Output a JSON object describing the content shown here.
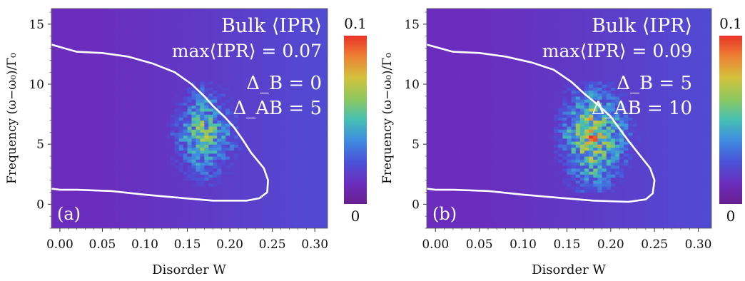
{
  "chart_data": [
    {
      "type": "heatmap",
      "panel_label": "(a)",
      "xlabel": "Disorder W",
      "ylabel": "Frequency (ω−ω₀)/Γ₀",
      "xlim": [
        -0.01,
        0.315
      ],
      "ylim": [
        -2,
        16.3
      ],
      "xticks": [
        "0.00",
        "0.05",
        "0.10",
        "0.15",
        "0.20",
        "0.25",
        "0.30"
      ],
      "yticks": [
        "0",
        "5",
        "10",
        "15"
      ],
      "annotations": [
        "Bulk ⟨IPR⟩",
        "max⟨IPR⟩ = 0.07",
        "Δ_B = 0",
        "Δ_AB = 5"
      ],
      "colorbar": {
        "min_label": "0",
        "max_label": "0.1",
        "range": [
          0,
          0.1
        ]
      },
      "max_ipr": 0.07,
      "background_value": 0.012,
      "localized_region": {
        "w_start": 0.11,
        "w_peak": 0.165,
        "w_end": 0.235,
        "freq_low": 1.5,
        "freq_high": 10.0
      },
      "boundary": [
        [
          -0.01,
          13.3
        ],
        [
          0.0,
          13.1
        ],
        [
          0.02,
          12.7
        ],
        [
          0.05,
          12.6
        ],
        [
          0.08,
          12.3
        ],
        [
          0.11,
          11.7
        ],
        [
          0.135,
          11.0
        ],
        [
          0.155,
          10.0
        ],
        [
          0.17,
          9.0
        ],
        [
          0.18,
          8.2
        ],
        [
          0.195,
          7.2
        ],
        [
          0.205,
          6.4
        ],
        [
          0.215,
          5.4
        ],
        [
          0.225,
          4.3
        ],
        [
          0.24,
          3.0
        ],
        [
          0.245,
          2.0
        ],
        [
          0.244,
          1.0
        ],
        [
          0.235,
          0.5
        ],
        [
          0.22,
          0.3
        ],
        [
          0.18,
          0.3
        ],
        [
          0.13,
          0.6
        ],
        [
          0.1,
          0.8
        ],
        [
          0.06,
          1.1
        ],
        [
          0.02,
          1.2
        ],
        [
          0.0,
          1.2
        ],
        [
          -0.01,
          1.3
        ]
      ]
    },
    {
      "type": "heatmap",
      "panel_label": "(b)",
      "xlabel": "Disorder W",
      "ylabel": "Frequency (ω−ω₀)/Γ₀",
      "xlim": [
        -0.01,
        0.315
      ],
      "ylim": [
        -2,
        16.3
      ],
      "xticks": [
        "0.00",
        "0.05",
        "0.10",
        "0.15",
        "0.20",
        "0.25",
        "0.30"
      ],
      "yticks": [
        "0",
        "5",
        "10",
        "15"
      ],
      "annotations": [
        "Bulk ⟨IPR⟩",
        "max⟨IPR⟩ = 0.09",
        "Δ_B = 5",
        "Δ_AB = 10"
      ],
      "colorbar": {
        "min_label": "0",
        "max_label": "0.1",
        "range": [
          0,
          0.1
        ]
      },
      "max_ipr": 0.09,
      "background_value": 0.012,
      "localized_region": {
        "w_start": 0.12,
        "w_peak": 0.175,
        "w_end": 0.245,
        "freq_low": 1.0,
        "freq_high": 10.0
      },
      "boundary": [
        [
          -0.01,
          13.3
        ],
        [
          0.0,
          13.1
        ],
        [
          0.02,
          12.7
        ],
        [
          0.05,
          12.6
        ],
        [
          0.08,
          12.3
        ],
        [
          0.11,
          11.8
        ],
        [
          0.135,
          11.2
        ],
        [
          0.155,
          10.2
        ],
        [
          0.17,
          9.2
        ],
        [
          0.185,
          8.3
        ],
        [
          0.2,
          7.3
        ],
        [
          0.21,
          6.3
        ],
        [
          0.22,
          5.3
        ],
        [
          0.232,
          4.2
        ],
        [
          0.245,
          3.0
        ],
        [
          0.25,
          2.0
        ],
        [
          0.248,
          0.9
        ],
        [
          0.24,
          0.4
        ],
        [
          0.22,
          0.2
        ],
        [
          0.18,
          0.3
        ],
        [
          0.13,
          0.6
        ],
        [
          0.1,
          0.8
        ],
        [
          0.06,
          1.1
        ],
        [
          0.02,
          1.2
        ],
        [
          0.0,
          1.2
        ],
        [
          -0.01,
          1.3
        ]
      ]
    }
  ]
}
